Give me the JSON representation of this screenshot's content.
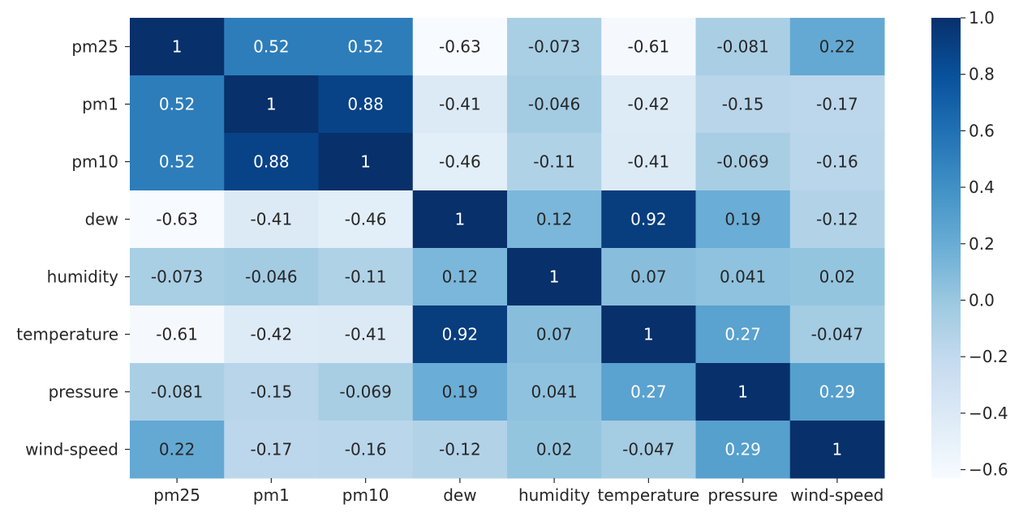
{
  "chart_data": {
    "type": "heatmap",
    "title": "",
    "xlabel": "",
    "ylabel": "",
    "rows": [
      "pm25",
      "pm1",
      "pm10",
      "dew",
      "humidity",
      "temperature",
      "pressure",
      "wind-speed"
    ],
    "cols": [
      "pm25",
      "pm1",
      "pm10",
      "dew",
      "humidity",
      "temperature",
      "pressure",
      "wind-speed"
    ],
    "values": [
      [
        1,
        0.52,
        0.52,
        -0.63,
        -0.073,
        -0.61,
        -0.081,
        0.22
      ],
      [
        0.52,
        1,
        0.88,
        -0.41,
        -0.046,
        -0.42,
        -0.15,
        -0.17
      ],
      [
        0.52,
        0.88,
        1,
        -0.46,
        -0.11,
        -0.41,
        -0.069,
        -0.16
      ],
      [
        -0.63,
        -0.41,
        -0.46,
        1,
        0.12,
        0.92,
        0.19,
        -0.12
      ],
      [
        -0.073,
        -0.046,
        -0.11,
        0.12,
        1,
        0.07,
        0.041,
        0.02
      ],
      [
        -0.61,
        -0.42,
        -0.41,
        0.92,
        0.07,
        1,
        0.27,
        -0.047
      ],
      [
        -0.081,
        -0.15,
        -0.069,
        0.19,
        0.041,
        0.27,
        1,
        0.29
      ],
      [
        0.22,
        -0.17,
        -0.16,
        -0.12,
        0.02,
        -0.047,
        0.29,
        1
      ]
    ],
    "annotations": [
      [
        "1",
        "0.52",
        "0.52",
        "-0.63",
        "-0.073",
        "-0.61",
        "-0.081",
        "0.22"
      ],
      [
        "0.52",
        "1",
        "0.88",
        "-0.41",
        "-0.046",
        "-0.42",
        "-0.15",
        "-0.17"
      ],
      [
        "0.52",
        "0.88",
        "1",
        "-0.46",
        "-0.11",
        "-0.41",
        "-0.069",
        "-0.16"
      ],
      [
        "-0.63",
        "-0.41",
        "-0.46",
        "1",
        "0.12",
        "0.92",
        "0.19",
        "-0.12"
      ],
      [
        "-0.073",
        "-0.046",
        "-0.11",
        "0.12",
        "1",
        "0.07",
        "0.041",
        "0.02"
      ],
      [
        "-0.61",
        "-0.42",
        "-0.41",
        "0.92",
        "0.07",
        "1",
        "0.27",
        "-0.047"
      ],
      [
        "-0.081",
        "-0.15",
        "-0.069",
        "0.19",
        "0.041",
        "0.27",
        "1",
        "0.29"
      ],
      [
        "0.22",
        "-0.17",
        "-0.16",
        "-0.12",
        "0.02",
        "-0.047",
        "0.29",
        "1"
      ]
    ],
    "colormap": "Blues",
    "vmin": -0.63,
    "vmax": 1.0,
    "colorbar": {
      "ticks": [
        1.0,
        0.8,
        0.6,
        0.4,
        0.2,
        0.0,
        -0.2,
        -0.4,
        -0.6
      ],
      "tick_labels": [
        "1.0",
        "0.8",
        "0.6",
        "0.4",
        "0.2",
        "0.0",
        "−0.2",
        "−0.4",
        "−0.6"
      ]
    },
    "text_colors": {
      "dark": "#262626",
      "light": "#ffffff"
    }
  }
}
